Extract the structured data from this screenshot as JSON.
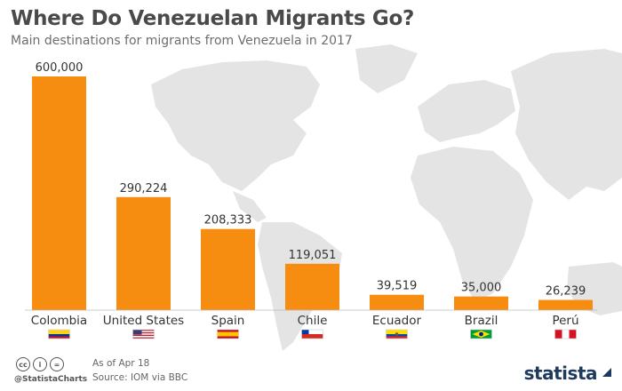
{
  "header": {
    "title": "Where Do Venezuelan Migrants Go?",
    "subtitle": "Main destinations for migrants from Venezuela in 2017"
  },
  "footer": {
    "handle": "@StatistaCharts",
    "as_of": "As of Apr 18",
    "source": "Source: IOM via BBC",
    "brand": "statista",
    "cc_icons": [
      "cc-icon",
      "by-icon",
      "nd-icon"
    ]
  },
  "colors": {
    "bar": "#f68d10",
    "map": "#e3e3e3",
    "text": "#333333"
  },
  "chart_data": {
    "type": "bar",
    "title": "Where Do Venezuelan Migrants Go?",
    "subtitle": "Main destinations for migrants from Venezuela in 2017",
    "categories": [
      "Colombia",
      "United States",
      "Spain",
      "Chile",
      "Ecuador",
      "Brazil",
      "Perú"
    ],
    "values": [
      600000,
      290224,
      208333,
      119051,
      39519,
      35000,
      26239
    ],
    "value_labels": [
      "600,000",
      "290,224",
      "208,333",
      "119,051",
      "39,519",
      "35,000",
      "26,239"
    ],
    "flags": [
      "colombia-flag",
      "usa-flag",
      "spain-flag",
      "chile-flag",
      "ecuador-flag",
      "brazil-flag",
      "peru-flag"
    ],
    "ylim": [
      0,
      600000
    ],
    "grid": false,
    "legend": "none"
  }
}
